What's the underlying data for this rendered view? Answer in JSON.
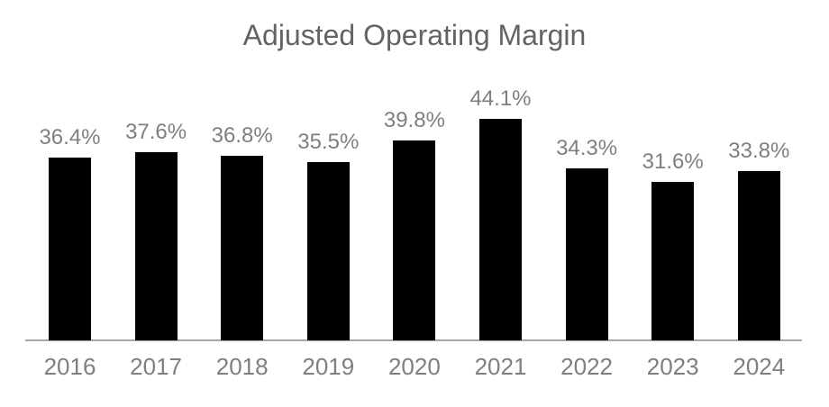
{
  "chart_data": {
    "type": "bar",
    "title": "Adjusted Operating Margin",
    "categories": [
      "2016",
      "2017",
      "2018",
      "2019",
      "2020",
      "2021",
      "2022",
      "2023",
      "2024"
    ],
    "values": [
      36.4,
      37.6,
      36.8,
      35.5,
      39.8,
      44.1,
      34.3,
      31.6,
      33.8
    ],
    "data_labels": [
      "36.4%",
      "37.6%",
      "36.8%",
      "35.5%",
      "39.8%",
      "44.1%",
      "34.3%",
      "31.6%",
      "33.8%"
    ],
    "xlabel": "",
    "ylabel": "",
    "ylim": [
      0,
      50
    ],
    "grid": false,
    "legend": false,
    "y_axis_visible": false,
    "colors": {
      "bar": "#000000",
      "data_label": "#7f7f7f",
      "tick_label": "#7f7f7f",
      "title": "#636363",
      "axis_line": "#a6a6a6",
      "background": "#ffffff"
    }
  }
}
